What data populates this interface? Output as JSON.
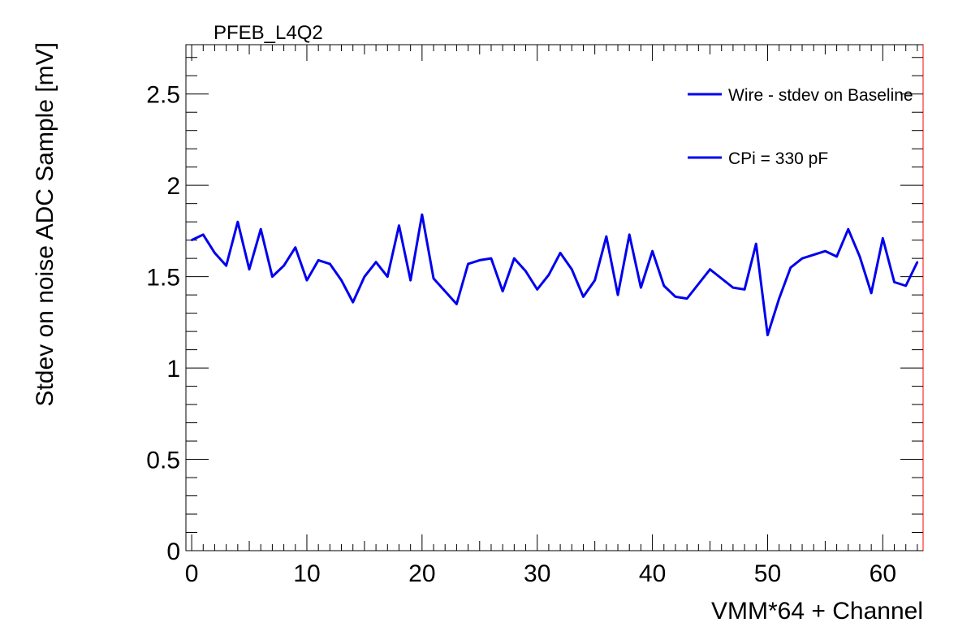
{
  "chart_data": {
    "type": "line",
    "title": "PFEB_L4Q2",
    "xlabel": "VMM*64 + Channel",
    "ylabel": "Stdev on noise ADC Sample [mV]",
    "xlim": [
      -0.5,
      63.5
    ],
    "ylim": [
      0,
      2.77
    ],
    "x_ticks": [
      0,
      10,
      20,
      30,
      40,
      50,
      60
    ],
    "y_ticks": [
      0,
      0.5,
      1,
      1.5,
      2,
      2.5
    ],
    "x_tick_labels": [
      "0",
      "10",
      "20",
      "30",
      "40",
      "50",
      "60"
    ],
    "y_tick_labels": [
      "0",
      "0.5",
      "1",
      "1.5",
      "2",
      "2.5"
    ],
    "grid": false,
    "legend_position": "top-right",
    "series": [
      {
        "name": "Wire - stdev on Baseline",
        "color": "#0000ee",
        "x": [
          0,
          1,
          2,
          3,
          4,
          5,
          6,
          7,
          8,
          9,
          10,
          11,
          12,
          13,
          14,
          15,
          16,
          17,
          18,
          19,
          20,
          21,
          22,
          23,
          24,
          25,
          26,
          27,
          28,
          29,
          30,
          31,
          32,
          33,
          34,
          35,
          36,
          37,
          38,
          39,
          40,
          41,
          42,
          43,
          44,
          45,
          46,
          47,
          48,
          49,
          50,
          51,
          52,
          53,
          54,
          55,
          56,
          57,
          58,
          59,
          60,
          61,
          62,
          63
        ],
        "y": [
          1.7,
          1.73,
          1.63,
          1.56,
          1.8,
          1.54,
          1.76,
          1.5,
          1.56,
          1.66,
          1.48,
          1.59,
          1.57,
          1.48,
          1.36,
          1.5,
          1.58,
          1.5,
          1.78,
          1.48,
          1.84,
          1.49,
          1.42,
          1.35,
          1.57,
          1.59,
          1.6,
          1.42,
          1.6,
          1.53,
          1.43,
          1.51,
          1.63,
          1.54,
          1.39,
          1.48,
          1.72,
          1.4,
          1.73,
          1.44,
          1.64,
          1.45,
          1.39,
          1.38,
          1.46,
          1.54,
          1.49,
          1.44,
          1.43,
          1.68,
          1.18,
          1.38,
          1.55,
          1.6,
          1.62,
          1.64,
          1.61,
          1.76,
          1.61,
          1.41,
          1.71,
          1.47,
          1.45,
          1.58
        ]
      },
      {
        "name": "CPi = 330 pF",
        "color": "#0000ee",
        "x": [],
        "y": []
      }
    ]
  }
}
